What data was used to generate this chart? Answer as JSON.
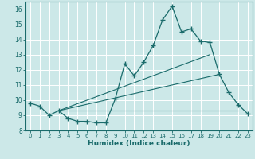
{
  "xlabel": "Humidex (Indice chaleur)",
  "xlim": [
    -0.5,
    23.5
  ],
  "ylim": [
    8,
    16.5
  ],
  "yticks": [
    8,
    9,
    10,
    11,
    12,
    13,
    14,
    15,
    16
  ],
  "xticks": [
    0,
    1,
    2,
    3,
    4,
    5,
    6,
    7,
    8,
    9,
    10,
    11,
    12,
    13,
    14,
    15,
    16,
    17,
    18,
    19,
    20,
    21,
    22,
    23
  ],
  "background_color": "#cce8e8",
  "line_color": "#1a6b6b",
  "grid_color": "#b0d0d0",
  "curve1_x": [
    0,
    1,
    2,
    3,
    4,
    5,
    6,
    7,
    8,
    9,
    10,
    11,
    12,
    13,
    14,
    15,
    16,
    17,
    18,
    19,
    20,
    21,
    22,
    23
  ],
  "curve1_y": [
    9.8,
    9.6,
    9.0,
    9.3,
    8.8,
    8.6,
    8.6,
    8.5,
    8.5,
    10.1,
    12.4,
    11.6,
    12.5,
    13.6,
    15.3,
    16.2,
    14.5,
    14.7,
    13.9,
    13.8,
    11.7,
    10.5,
    9.7,
    9.1
  ],
  "line1_x": [
    3,
    19
  ],
  "line1_y": [
    9.3,
    13.0
  ],
  "line2_x": [
    3,
    20
  ],
  "line2_y": [
    9.3,
    11.7
  ],
  "line3_x": [
    3,
    22
  ],
  "line3_y": [
    9.3,
    9.3
  ]
}
